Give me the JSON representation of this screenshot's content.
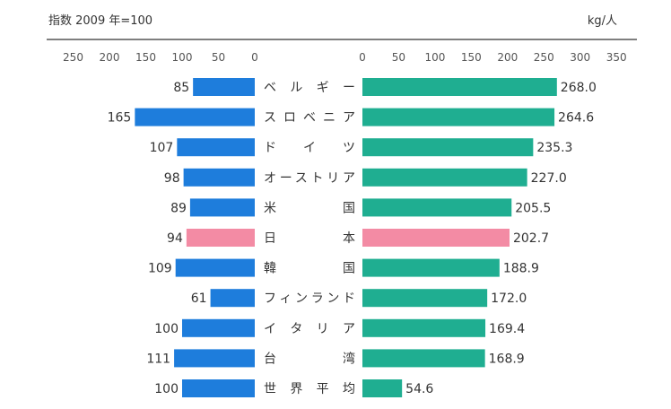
{
  "chart_data": {
    "type": "bar",
    "left_axis_label": "指数 2009 年=100",
    "right_axis_label": "kg/人",
    "left_ticks": [
      "250",
      "200",
      "150",
      "100",
      "50",
      "0"
    ],
    "right_ticks": [
      "0",
      "50",
      "100",
      "150",
      "200",
      "250",
      "300",
      "350"
    ],
    "left_xlim": [
      0,
      250
    ],
    "right_xlim": [
      0,
      350
    ],
    "categories": [
      {
        "label": "ベ ル ギ ー",
        "index": "85",
        "kg": "268.0",
        "highlight": false
      },
      {
        "label": "スロベニア",
        "index": "165",
        "kg": "264.6",
        "highlight": false
      },
      {
        "label": "ド イ ツ",
        "index": "107",
        "kg": "235.3",
        "highlight": false
      },
      {
        "label": "オーストリア",
        "index": "98",
        "kg": "227.0",
        "highlight": false
      },
      {
        "label": "米 国",
        "index": "89",
        "kg": "205.5",
        "highlight": false
      },
      {
        "label": "日 本",
        "index": "94",
        "kg": "202.7",
        "highlight": true
      },
      {
        "label": "韓 国",
        "index": "109",
        "kg": "188.9",
        "highlight": false
      },
      {
        "label": "フィンランド",
        "index": "61",
        "kg": "172.0",
        "highlight": false
      },
      {
        "label": "イ タ リ ア",
        "index": "100",
        "kg": "169.4",
        "highlight": false
      },
      {
        "label": "台 湾",
        "index": "111",
        "kg": "168.9",
        "highlight": false
      },
      {
        "label": "世 界 平 均",
        "index": "100",
        "kg": "54.6",
        "highlight": false
      }
    ],
    "colors": {
      "left_bar": "#1e7ddc",
      "right_bar": "#1fae91",
      "highlight_bar": "#f38ba4",
      "axis": "#333333"
    }
  }
}
